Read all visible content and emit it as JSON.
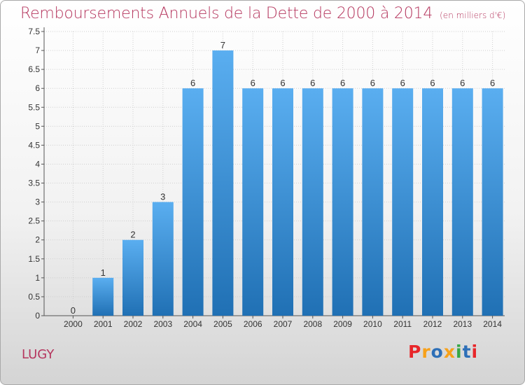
{
  "header": {
    "title": "Remboursements Annuels de la Dette de 2000 à 2014",
    "unit": "(en milliers d'€)"
  },
  "footer": {
    "commune": "LUGY",
    "logo_text": "Proxiti",
    "logo_colors": [
      "#e8262a",
      "#f7a11a",
      "#2d6fb7",
      "#f7a11a",
      "#37a745",
      "#2d6fb7",
      "#e8262a"
    ]
  },
  "colors": {
    "bar_light": "#5aaef0",
    "bar_dark": "#2070b4",
    "text": "#333333",
    "accent": "#b5365e"
  },
  "chart_data": {
    "type": "bar",
    "title": "Remboursements Annuels de la Dette de 2000 à 2014",
    "ylabel": "",
    "xlabel": "",
    "categories": [
      "2000",
      "2001",
      "2002",
      "2003",
      "2004",
      "2005",
      "2006",
      "2007",
      "2008",
      "2009",
      "2010",
      "2011",
      "2012",
      "2013",
      "2014"
    ],
    "values": [
      0,
      1,
      2,
      3,
      6,
      7,
      6,
      6,
      6,
      6,
      6,
      6,
      6,
      6,
      6
    ],
    "data_labels": [
      "0",
      "1",
      "2",
      "3",
      "6",
      "7",
      "6",
      "6",
      "6",
      "6",
      "6",
      "6",
      "6",
      "6",
      "6"
    ],
    "ylim": [
      0,
      7.5
    ],
    "yticks": [
      0,
      0.5,
      1,
      1.5,
      2,
      2.5,
      3,
      3.5,
      4,
      4.5,
      5,
      5.5,
      6,
      6.5,
      7,
      7.5
    ],
    "ytick_labels": [
      "0",
      "0.5",
      "1",
      "1.5",
      "2",
      "2.5",
      "3",
      "3.5",
      "4",
      "4.5",
      "5",
      "5.5",
      "6",
      "6.5",
      "7",
      "7.5"
    ],
    "grid": true
  }
}
